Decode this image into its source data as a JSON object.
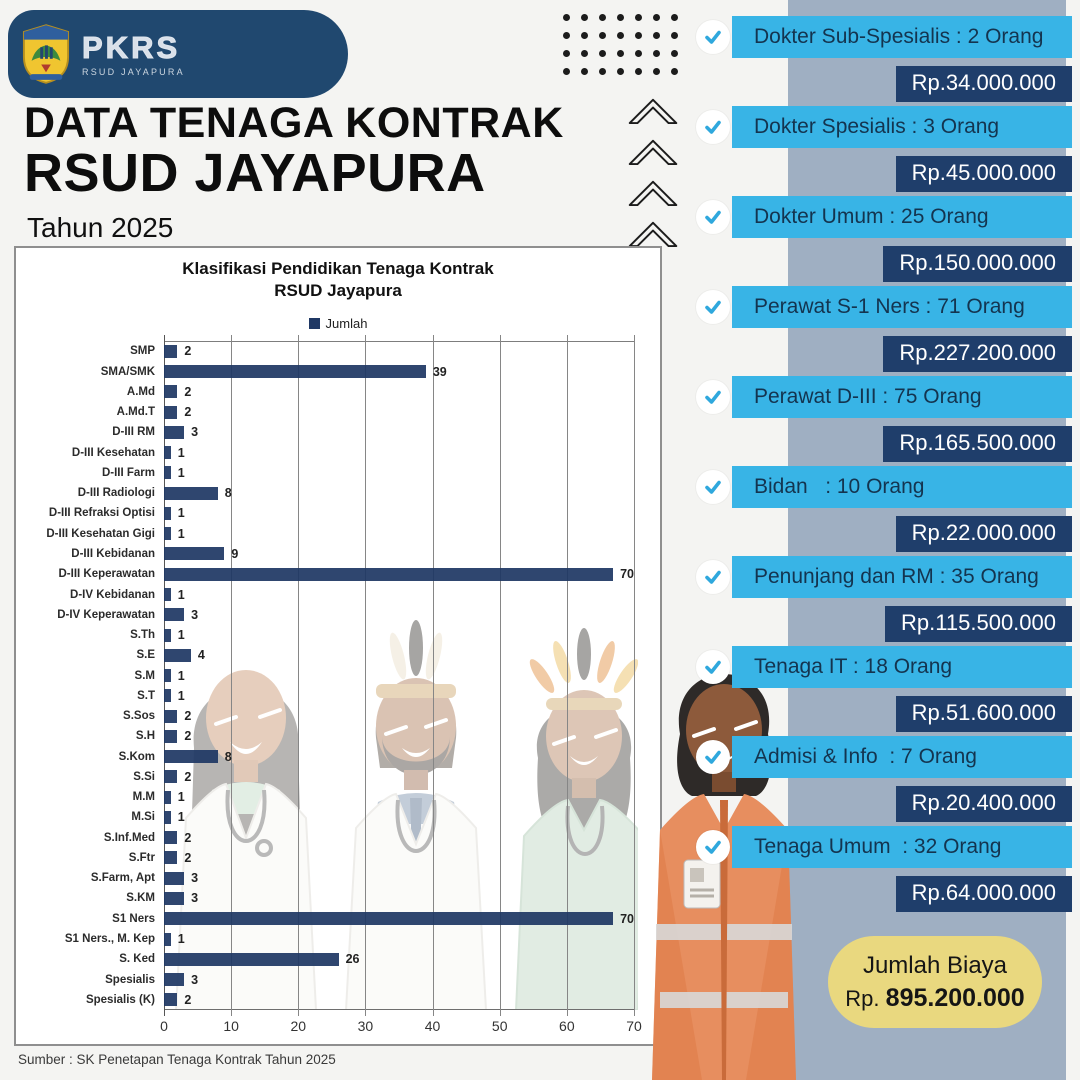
{
  "header": {
    "logo_pkrs": "PKRS",
    "logo_sub": "RSUD JAYAPURA",
    "title_line1": "DATA TENAGA KONTRAK",
    "title_line2": "RSUD JAYAPURA",
    "subtitle": "Tahun 2025"
  },
  "chart_data": {
    "type": "bar",
    "orientation": "horizontal",
    "title_line1": "Klasifikasi Pendidikan Tenaga Kontrak",
    "title_line2": "RSUD Jayapura",
    "legend": "Jumlah",
    "categories": [
      "SMP",
      "SMA/SMK",
      "A.Md",
      "A.Md.T",
      "D-III RM",
      "D-III Kesehatan",
      "D-III Farm",
      "D-III Radiologi",
      "D-III Refraksi Optisi",
      "D-III Kesehatan Gigi",
      "D-III Kebidanan",
      "D-III Keperawatan",
      "D-IV Kebidanan",
      "D-IV Keperawatan",
      "S.Th",
      "S.E",
      "S.M",
      "S.T",
      "S.Sos",
      "S.H",
      "S.Kom",
      "S.Si",
      "M.M",
      "M.Si",
      "S.Inf.Med",
      "S.Ftr",
      "S.Farm, Apt",
      "S.KM",
      "S1 Ners",
      "S1 Ners., M. Kep",
      "S. Ked",
      "Spesialis",
      "Spesialis (K)"
    ],
    "values": [
      2,
      39,
      2,
      2,
      3,
      1,
      1,
      8,
      1,
      1,
      9,
      70,
      1,
      3,
      1,
      4,
      1,
      1,
      2,
      2,
      8,
      2,
      1,
      1,
      2,
      2,
      3,
      3,
      70,
      1,
      26,
      3,
      2
    ],
    "xlim": [
      0,
      70
    ],
    "xticks": [
      0,
      10,
      20,
      30,
      40,
      50,
      60,
      70
    ],
    "grid": true,
    "bar_color": "#1f3864"
  },
  "sidebar": {
    "items": [
      {
        "label": "Dokter Sub-Spesialis : 2 Orang",
        "amount": "Rp.34.000.000"
      },
      {
        "label": "Dokter Spesialis : 3 Orang",
        "amount": "Rp.45.000.000"
      },
      {
        "label": "Dokter Umum : 25 Orang",
        "amount": "Rp.150.000.000"
      },
      {
        "label": "Perawat S-1 Ners : 71 Orang",
        "amount": "Rp.227.200.000"
      },
      {
        "label": "Perawat D-III : 75 Orang",
        "amount": "Rp.165.500.000"
      },
      {
        "label": "Bidan   : 10 Orang",
        "amount": "Rp.22.000.000"
      },
      {
        "label": "Penunjang dan RM : 35 Orang",
        "amount": "Rp.115.500.000"
      },
      {
        "label": "Tenaga IT : 18 Orang",
        "amount": "Rp.51.600.000"
      },
      {
        "label": "Admisi & Info  : 7 Orang",
        "amount": "Rp.20.400.000"
      },
      {
        "label": "Tenaga Umum  : 32 Orang",
        "amount": "Rp.64.000.000"
      }
    ],
    "total": {
      "label": "Jumlah Biaya",
      "prefix": "Rp.",
      "amount": "895.200.000"
    }
  },
  "footer": {
    "source": "Sumber : SK Penetapan Tenaga Kontrak Tahun 2025"
  },
  "colors": {
    "bg": "#f4f4f2",
    "banner": "#20486f",
    "skyblue": "#38b4e6",
    "navy": "#1f3e6b",
    "bar": "#1f3864",
    "strip": "#9fafc2",
    "yellow": "#e9d87f",
    "check": "#2fa8dd"
  }
}
